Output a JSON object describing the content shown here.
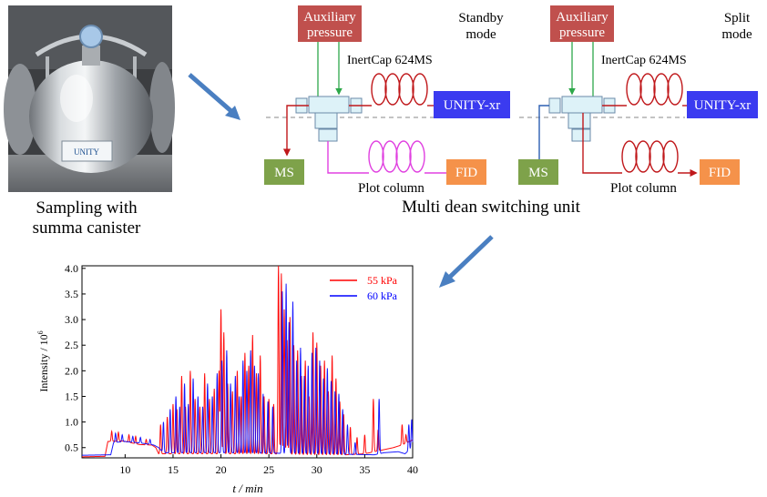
{
  "photo": {
    "caption_line1": "Sampling with",
    "caption_line2": "summa canister",
    "label_text": "UNITY"
  },
  "panels": [
    {
      "aux_line1": "Auxiliary",
      "aux_line2": "pressure",
      "mode_line1": "Standby",
      "mode_line2": "mode",
      "column_label": "InertCap 624MS",
      "unity_label": "UNITY-xr",
      "ms_label": "MS",
      "fid_label": "FID",
      "plot_column_label": "Plot column"
    },
    {
      "aux_line1": "Auxiliary",
      "aux_line2": "pressure",
      "mode_line1": "Split",
      "mode_line2": "mode",
      "column_label": "InertCap 624MS",
      "unity_label": "UNITY-xr",
      "ms_label": "MS",
      "fid_label": "FID",
      "plot_column_label": "Plot column"
    }
  ],
  "unit_caption": "Multi dean switching unit",
  "colors": {
    "aux_box": "#c0504d",
    "unity_box": "#3b3bf0",
    "ms_box": "#7ea24a",
    "fid_box": "#f5924a",
    "arrow": "#4a7fc1",
    "aux_line": "#2ea84a",
    "column_coil": "#c0181b",
    "plot_coil": "#e040e0",
    "ms_line_split": "#2b5eb2",
    "valve_fill": "#ddf2f8",
    "valve_stroke": "#6a8aa8"
  },
  "chart_data": {
    "type": "line",
    "xlabel": "t / min",
    "ylabel": "Intensity / 10^6",
    "ylabel_parts": [
      "Intensity / 10",
      "6"
    ],
    "xlim": [
      5.5,
      40
    ],
    "ylim": [
      0.3,
      4.05
    ],
    "xticks": [
      "10",
      "15",
      "20",
      "25",
      "30",
      "35",
      "40"
    ],
    "xtick_values": [
      10,
      15,
      20,
      25,
      30,
      35,
      40
    ],
    "yticks": [
      "0.5",
      "1.0",
      "1.5",
      "2.0",
      "2.5",
      "3.0",
      "3.5",
      "4.0"
    ],
    "ytick_values": [
      0.5,
      1.0,
      1.5,
      2.0,
      2.5,
      3.0,
      3.5,
      4.0
    ],
    "legend_position": "top-right",
    "series": [
      {
        "name": "55 kPa",
        "color": "#ff0000",
        "baseline": [
          [
            5.5,
            0.32
          ],
          [
            7.9,
            0.33
          ],
          [
            8.2,
            0.62
          ],
          [
            9.8,
            0.63
          ],
          [
            10.5,
            0.6
          ],
          [
            11.5,
            0.56
          ],
          [
            12.8,
            0.55
          ],
          [
            13.2,
            0.5
          ],
          [
            13.5,
            0.38
          ],
          [
            20,
            0.38
          ],
          [
            25,
            0.38
          ],
          [
            27,
            0.37
          ],
          [
            30,
            0.36
          ],
          [
            33,
            0.36
          ],
          [
            35,
            0.38
          ],
          [
            36.5,
            0.44
          ],
          [
            38,
            0.5
          ],
          [
            39,
            0.56
          ],
          [
            40,
            0.65
          ]
        ],
        "peaks": [
          [
            8.6,
            0.82
          ],
          [
            9.3,
            0.8
          ],
          [
            10.4,
            0.75
          ],
          [
            11.1,
            0.72
          ],
          [
            12.2,
            0.66
          ],
          [
            13.7,
            0.95
          ],
          [
            14.4,
            1.1
          ],
          [
            15.0,
            1.35
          ],
          [
            15.4,
            1.25
          ],
          [
            15.9,
            1.9
          ],
          [
            16.3,
            1.3
          ],
          [
            16.8,
            2.0
          ],
          [
            17.3,
            1.45
          ],
          [
            17.8,
            1.3
          ],
          [
            18.3,
            1.95
          ],
          [
            18.8,
            1.45
          ],
          [
            19.3,
            1.65
          ],
          [
            19.8,
            2.0
          ],
          [
            20.0,
            3.2
          ],
          [
            20.3,
            2.75
          ],
          [
            20.7,
            1.75
          ],
          [
            21.2,
            1.6
          ],
          [
            21.7,
            2.0
          ],
          [
            22.1,
            1.5
          ],
          [
            22.5,
            2.35
          ],
          [
            22.9,
            2.1
          ],
          [
            23.3,
            2.7
          ],
          [
            23.7,
            1.95
          ],
          [
            24.1,
            2.3
          ],
          [
            24.5,
            1.5
          ],
          [
            25.0,
            1.45
          ],
          [
            25.5,
            1.35
          ],
          [
            26.0,
            4.05
          ],
          [
            26.3,
            3.9
          ],
          [
            26.6,
            3.2
          ],
          [
            26.9,
            2.6
          ],
          [
            27.2,
            3.05
          ],
          [
            27.6,
            2.5
          ],
          [
            28.0,
            2.4
          ],
          [
            28.4,
            1.9
          ],
          [
            28.8,
            2.2
          ],
          [
            29.2,
            1.5
          ],
          [
            29.6,
            2.75
          ],
          [
            30.0,
            2.55
          ],
          [
            30.4,
            2.1
          ],
          [
            30.8,
            2.2
          ],
          [
            31.2,
            1.6
          ],
          [
            31.6,
            2.3
          ],
          [
            32.0,
            1.85
          ],
          [
            32.4,
            1.4
          ],
          [
            32.8,
            1.15
          ],
          [
            33.5,
            0.9
          ],
          [
            34.2,
            0.7
          ],
          [
            35.0,
            0.75
          ],
          [
            35.9,
            1.45
          ],
          [
            36.4,
            0.85
          ],
          [
            38.9,
            0.95
          ],
          [
            39.3,
            0.75
          ]
        ]
      },
      {
        "name": "60 kPa",
        "color": "#0000ff",
        "baseline": [
          [
            5.5,
            0.35
          ],
          [
            8.5,
            0.36
          ],
          [
            8.8,
            0.6
          ],
          [
            10,
            0.62
          ],
          [
            11,
            0.6
          ],
          [
            12,
            0.58
          ],
          [
            13,
            0.55
          ],
          [
            13.5,
            0.5
          ],
          [
            14,
            0.4
          ],
          [
            20,
            0.4
          ],
          [
            26,
            0.39
          ],
          [
            30,
            0.38
          ],
          [
            33,
            0.37
          ],
          [
            36,
            0.36
          ],
          [
            37,
            0.4
          ],
          [
            38.5,
            0.42
          ],
          [
            39.2,
            0.38
          ],
          [
            39.7,
            0.46
          ],
          [
            40,
            0.5
          ]
        ],
        "peaks": [
          [
            9.0,
            0.78
          ],
          [
            9.7,
            0.75
          ],
          [
            10.8,
            0.72
          ],
          [
            11.6,
            0.7
          ],
          [
            12.6,
            0.66
          ],
          [
            14.0,
            1.0
          ],
          [
            14.7,
            1.25
          ],
          [
            15.3,
            1.5
          ],
          [
            15.7,
            1.3
          ],
          [
            16.2,
            1.75
          ],
          [
            16.6,
            1.35
          ],
          [
            17.1,
            1.85
          ],
          [
            17.6,
            1.5
          ],
          [
            18.1,
            1.3
          ],
          [
            18.6,
            1.75
          ],
          [
            19.1,
            1.5
          ],
          [
            19.6,
            1.95
          ],
          [
            20.1,
            2.2
          ],
          [
            20.6,
            2.4
          ],
          [
            21.0,
            1.75
          ],
          [
            21.5,
            1.9
          ],
          [
            21.9,
            1.5
          ],
          [
            22.3,
            2.2
          ],
          [
            22.7,
            2.0
          ],
          [
            23.1,
            2.4
          ],
          [
            23.5,
            2.1
          ],
          [
            23.9,
            1.95
          ],
          [
            24.4,
            1.55
          ],
          [
            24.9,
            1.4
          ],
          [
            25.4,
            1.3
          ],
          [
            26.4,
            3.55
          ],
          [
            26.8,
            3.7
          ],
          [
            27.1,
            2.95
          ],
          [
            27.5,
            3.35
          ],
          [
            27.9,
            2.2
          ],
          [
            28.3,
            2.45
          ],
          [
            28.7,
            1.9
          ],
          [
            29.1,
            2.1
          ],
          [
            29.5,
            2.35
          ],
          [
            29.9,
            2.45
          ],
          [
            30.3,
            2.2
          ],
          [
            30.7,
            1.85
          ],
          [
            31.1,
            2.05
          ],
          [
            31.5,
            1.8
          ],
          [
            31.9,
            1.6
          ],
          [
            32.3,
            1.55
          ],
          [
            32.7,
            1.25
          ],
          [
            33.2,
            0.95
          ],
          [
            34.0,
            0.6
          ],
          [
            36.5,
            1.45
          ],
          [
            39.6,
            0.95
          ],
          [
            39.9,
            1.05
          ]
        ]
      }
    ]
  }
}
